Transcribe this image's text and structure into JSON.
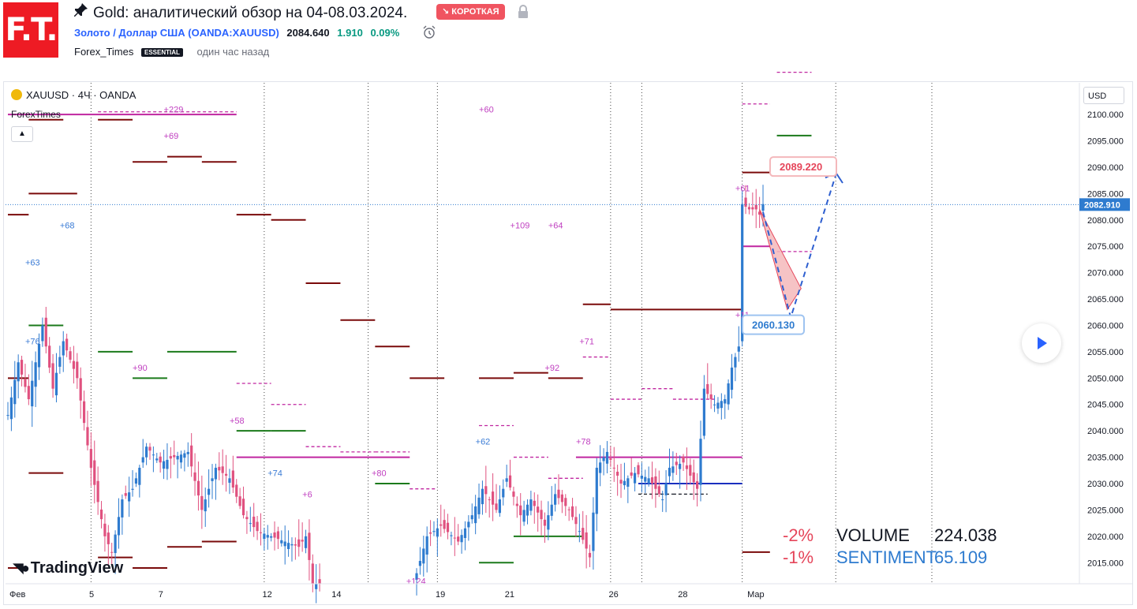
{
  "header": {
    "logo_text": "F.T.",
    "title": "Gold: аналитический обзор на 04-08.03.2024.",
    "badge": "↘ КОРОТКАЯ",
    "symbol_name": "Золото / Доллар США",
    "symbol_code": "(OANDA:XAUUSD)",
    "price": "2084.640",
    "change": "1.910",
    "change_pct": "0.09%",
    "author": "Forex_Times",
    "author_badge": "ESSENTIAL",
    "published": "один час назад",
    "pin_icon": "pin-icon",
    "lock_icon": "lock-icon",
    "alarm_icon": "alarm-icon"
  },
  "chart_header": {
    "symbol": "XAUUSD · 4Ч · OANDA",
    "indicator": "ForexTimes",
    "currency": "USD",
    "collapse_icon": "chevron-up-icon",
    "play_icon": "play-icon"
  },
  "brand": {
    "tradingview": "TradingView"
  },
  "stats": {
    "rows": [
      {
        "pct": "-2%",
        "label": "VOLUME",
        "value": "224.038",
        "label_color": "#131722"
      },
      {
        "pct": "-1%",
        "label": "SENTIMENT",
        "value": "65.109",
        "label_color": "#2e7bcf"
      }
    ]
  },
  "chart_data": {
    "type": "candlestick",
    "y_ticks": [
      2015,
      2020,
      2025,
      2030,
      2035,
      2040,
      2045,
      2050,
      2055,
      2060,
      2065,
      2070,
      2075,
      2080,
      2085,
      2090,
      2095,
      2100
    ],
    "ylim": [
      2011,
      2106
    ],
    "x_labels": [
      {
        "label": "Фев",
        "i": 0
      },
      {
        "label": "5",
        "i": 23
      },
      {
        "label": "7",
        "i": 43
      },
      {
        "label": "12",
        "i": 73
      },
      {
        "label": "14",
        "i": 93
      },
      {
        "label": "19",
        "i": 123
      },
      {
        "label": "21",
        "i": 143
      },
      {
        "label": "26",
        "i": 173
      },
      {
        "label": "28",
        "i": 193
      },
      {
        "label": "Мар",
        "i": 213
      }
    ],
    "last_price": "2082.910",
    "last_price_value": 2082.91,
    "annotations": [
      {
        "text": "2089.220",
        "value": 2089.22,
        "color": "#e5455a"
      },
      {
        "text": "2060.130",
        "value": 2060.13,
        "color": "#2e7bcf"
      }
    ],
    "level_labels": [
      {
        "text": "+229",
        "i": 45,
        "y": 2101
      },
      {
        "text": "+69",
        "i": 45,
        "y": 2096
      },
      {
        "text": "+60",
        "i": 136,
        "y": 2101
      },
      {
        "text": "+68",
        "i": 15,
        "y": 2079
      },
      {
        "text": "+63",
        "i": 5,
        "y": 2072
      },
      {
        "text": "+76",
        "i": 5,
        "y": 2057
      },
      {
        "text": "+90",
        "i": 36,
        "y": 2052
      },
      {
        "text": "+109",
        "i": 145,
        "y": 2079
      },
      {
        "text": "+64",
        "i": 156,
        "y": 2079
      },
      {
        "text": "+71",
        "i": 165,
        "y": 2057
      },
      {
        "text": "+92",
        "i": 155,
        "y": 2052
      },
      {
        "text": "+61",
        "i": 210,
        "y": 2086
      },
      {
        "text": "+11",
        "i": 210,
        "y": 2062
      },
      {
        "text": "+58",
        "i": 64,
        "y": 2042
      },
      {
        "text": "+62",
        "i": 135,
        "y": 2038
      },
      {
        "text": "+74",
        "i": 75,
        "y": 2032
      },
      {
        "text": "+80",
        "i": 105,
        "y": 2032
      },
      {
        "text": "+78",
        "i": 164,
        "y": 2038
      },
      {
        "text": "+6",
        "i": 85,
        "y": 2028
      },
      {
        "text": "+124",
        "i": 115,
        "y": 2011.5
      }
    ]
  }
}
